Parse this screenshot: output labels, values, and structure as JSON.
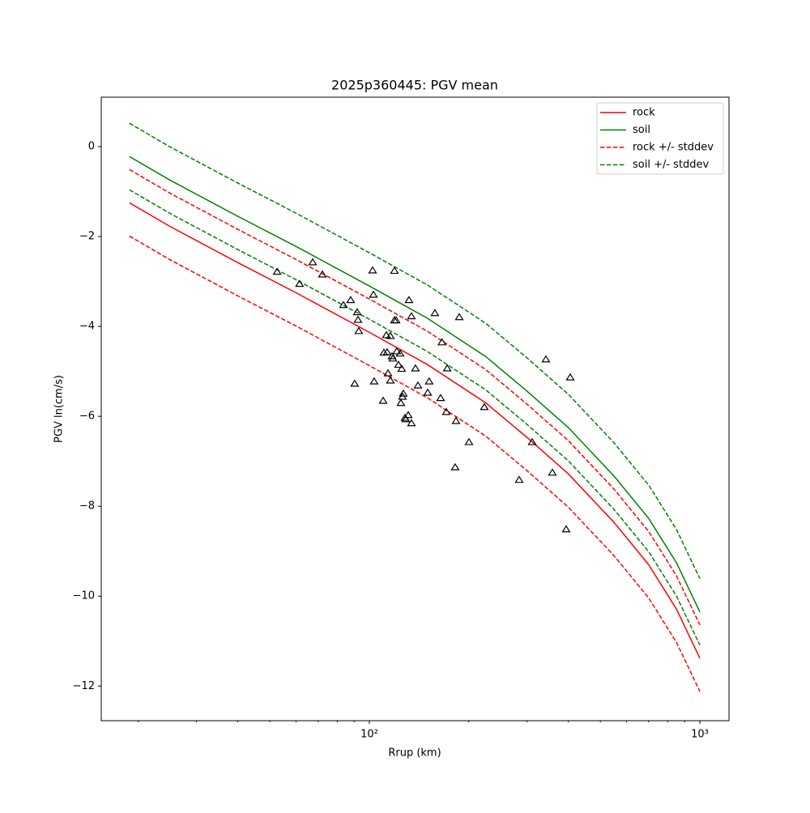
{
  "chart_data": {
    "type": "line",
    "title": "2025p360445: PGV mean",
    "x_label": "Rrup (km)",
    "y_label": "PGV ln(cm/s)",
    "x_scale": "log",
    "xlim": [
      15.45,
      1225
    ],
    "ylim": [
      -12.77,
      1.1
    ],
    "xticks": [
      {
        "value": 100,
        "label": "10²"
      },
      {
        "value": 1000,
        "label": "10³"
      }
    ],
    "xminorticks": [
      20,
      30,
      40,
      50,
      60,
      70,
      80,
      90,
      200,
      300,
      400,
      500,
      600,
      700,
      800,
      900
    ],
    "yticks": [
      {
        "value": 0,
        "label": "0"
      },
      {
        "value": -2,
        "label": "−2"
      },
      {
        "value": -4,
        "label": "−4"
      },
      {
        "value": -6,
        "label": "−6"
      },
      {
        "value": -8,
        "label": "−8"
      },
      {
        "value": -10,
        "label": "−10"
      },
      {
        "value": -12,
        "label": "−12"
      }
    ],
    "legend": "upper right",
    "x": [
      18.8,
      25,
      40,
      60,
      100,
      150,
      225,
      300,
      400,
      550,
      700,
      850,
      1000
    ],
    "series": [
      {
        "name": "rock",
        "color": "#ff0000",
        "dashed": false,
        "values": [
          -1.25,
          -1.78,
          -2.58,
          -3.25,
          -4.13,
          -4.85,
          -5.7,
          -6.47,
          -7.28,
          -8.36,
          -9.3,
          -10.29,
          -11.38
        ]
      },
      {
        "name": "soil",
        "color": "#008000",
        "dashed": false,
        "values": [
          -0.22,
          -0.75,
          -1.55,
          -2.22,
          -3.1,
          -3.82,
          -4.67,
          -5.44,
          -6.25,
          -7.33,
          -8.27,
          -9.26,
          -10.35
        ]
      },
      {
        "name": "rock +/- stddev",
        "color": "#ff0000",
        "dashed": true,
        "values": [
          -0.51,
          -1.04,
          -1.84,
          -2.51,
          -3.39,
          -4.11,
          -4.96,
          -5.73,
          -6.54,
          -7.62,
          -8.56,
          -9.55,
          -10.64
        ],
        "values_lower": [
          -1.99,
          -2.52,
          -3.32,
          -3.99,
          -4.87,
          -5.59,
          -6.44,
          -7.21,
          -8.02,
          -9.1,
          -10.04,
          -11.03,
          -12.12
        ]
      },
      {
        "name": "soil +/- stddev",
        "color": "#008000",
        "dashed": true,
        "values": [
          0.52,
          -0.01,
          -0.81,
          -1.48,
          -2.36,
          -3.08,
          -3.93,
          -4.7,
          -5.51,
          -6.59,
          -7.53,
          -8.52,
          -9.61
        ],
        "values_lower": [
          -0.96,
          -1.49,
          -2.29,
          -2.96,
          -3.84,
          -4.56,
          -5.41,
          -6.18,
          -6.99,
          -8.07,
          -9.01,
          -10.0,
          -11.09
        ]
      }
    ],
    "scatter": {
      "color": "#000000",
      "x": [
        52.6,
        67.4,
        61.5,
        72.1,
        83.5,
        87.8,
        91.9,
        92.4,
        92.9,
        90.3,
        102.3,
        102.9,
        103.4,
        110.1,
        110.7,
        112.6,
        113.2,
        115.8,
        113.9,
        115.8,
        117.1,
        117.8,
        119.1,
        119.1,
        120.5,
        121.1,
        122.5,
        123.9,
        125.3,
        124.6,
        126.0,
        126.7,
        128.2,
        128.9,
        131.1,
        131.8,
        134.1,
        134.1,
        137.9,
        140.3,
        150.2,
        151.7,
        157.9,
        164.3,
        165.8,
        172.0,
        171.0,
        182.9,
        181.8,
        187.1,
        200.2,
        222.8,
        284.0,
        310.9,
        342.1,
        357.9,
        394.0,
        405.3
      ],
      "y": [
        -2.79,
        -2.58,
        -3.06,
        -2.85,
        -3.53,
        -3.42,
        -3.69,
        -3.86,
        -4.11,
        -5.28,
        -2.76,
        -3.3,
        -5.23,
        -5.66,
        -4.59,
        -4.2,
        -4.58,
        -4.22,
        -5.05,
        -5.21,
        -4.67,
        -4.72,
        -2.77,
        -3.87,
        -3.87,
        -4.56,
        -4.86,
        -4.61,
        -4.95,
        -5.71,
        -5.57,
        -5.5,
        -6.04,
        -6.07,
        -5.98,
        -3.42,
        -3.78,
        -6.16,
        -4.94,
        -5.32,
        -5.48,
        -5.23,
        -3.71,
        -5.6,
        -4.36,
        -4.94,
        -5.91,
        -6.11,
        -7.14,
        -3.8,
        -6.58,
        -5.8,
        -7.42,
        -6.58,
        -4.74,
        -7.26,
        -8.52,
        -5.14
      ]
    }
  }
}
